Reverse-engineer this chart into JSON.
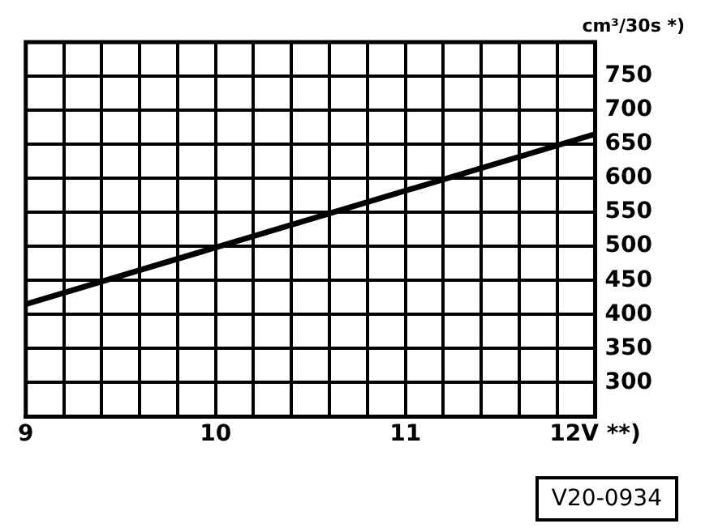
{
  "chart_data": {
    "type": "line",
    "ylabel": "cm³/30s *)",
    "x": [
      9,
      12
    ],
    "series": [
      {
        "color": "#000000",
        "values": [
          415,
          665
        ]
      }
    ],
    "xlim": [
      9,
      12
    ],
    "xticks": [
      9,
      {
        "value": 9.2,
        "label": null
      },
      {
        "value": 9.4,
        "label": null
      },
      {
        "value": 9.6,
        "label": null
      },
      {
        "value": 9.8,
        "label": null
      },
      10,
      {
        "value": 10.2,
        "label": null
      },
      {
        "value": 10.4,
        "label": null
      },
      {
        "value": 10.6,
        "label": null
      },
      {
        "value": 10.8,
        "label": null
      },
      11,
      {
        "value": 11.2,
        "label": null
      },
      {
        "value": 11.4,
        "label": null
      },
      {
        "value": 11.6,
        "label": null
      },
      {
        "value": 11.8,
        "label": null
      },
      {
        "value": 12,
        "label": "12V **)"
      }
    ],
    "ylim": [
      250,
      800
    ],
    "yticks": [
      300,
      350,
      400,
      450,
      500,
      550,
      600,
      650,
      700,
      750,
      {
        "value": 800,
        "label": null
      }
    ],
    "grid": true,
    "legend": false,
    "marker": "none",
    "line_style": "solid",
    "annotations": [
      "V20-0934"
    ]
  }
}
